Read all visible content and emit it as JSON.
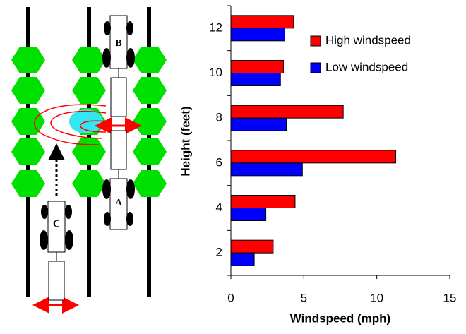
{
  "chart_data": {
    "type": "bar",
    "orientation": "horizontal",
    "x_label": "Windspeed (mph)",
    "y_label": "Height (feet)",
    "categories": [
      "2",
      "4",
      "6",
      "8",
      "10",
      "12"
    ],
    "series": [
      {
        "name": "High windspeed",
        "color": "#ff0000",
        "values": [
          2.9,
          4.4,
          11.3,
          7.7,
          3.6,
          4.3
        ]
      },
      {
        "name": "Low windspeed",
        "color": "#0000ff",
        "values": [
          1.6,
          2.4,
          4.9,
          3.8,
          3.4,
          3.7
        ]
      }
    ],
    "xlim": [
      0,
      15
    ],
    "xticks": [
      0,
      5,
      10,
      15
    ],
    "grid": false,
    "legend": "upper right"
  },
  "diagram": {
    "labels": [
      "A",
      "B",
      "C"
    ]
  }
}
